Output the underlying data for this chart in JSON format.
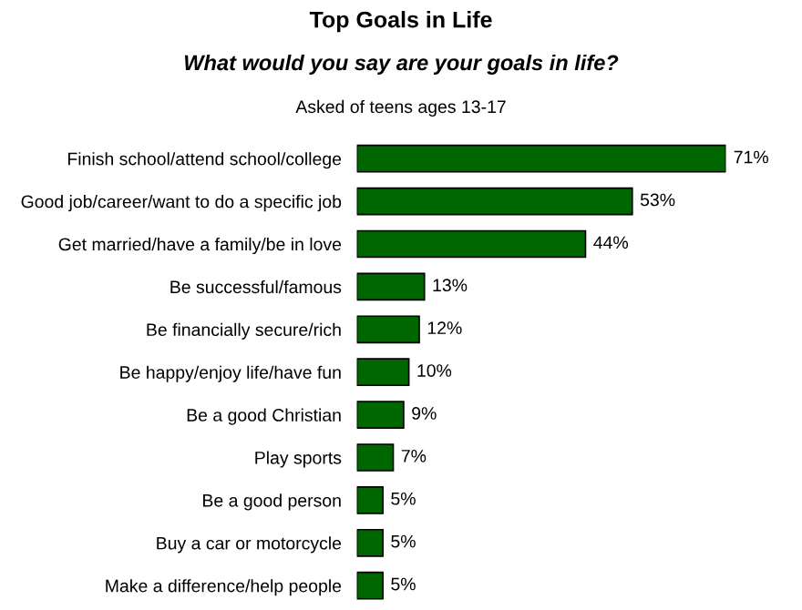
{
  "chart_data": {
    "type": "bar",
    "orientation": "horizontal",
    "title": "Top Goals in Life",
    "subtitle": "What would you say are your goals in life?",
    "annotations": [
      "Asked of teens ages 13-17"
    ],
    "categories": [
      "Finish school/attend school/college",
      "Good job/career/want to do a specific job",
      "Get married/have a family/be in love",
      "Be successful/famous",
      "Be financially secure/rich",
      "Be happy/enjoy life/have fun",
      "Be a good Christian",
      "Play sports",
      "Be a good person",
      "Buy a car or motorcycle",
      "Make a difference/help people"
    ],
    "values": [
      71,
      53,
      44,
      13,
      12,
      10,
      9,
      7,
      5,
      5,
      5
    ],
    "value_labels": [
      "71%",
      "53%",
      "44%",
      "13%",
      "12%",
      "10%",
      "9%",
      "7%",
      "5%",
      "5%",
      "5%"
    ],
    "color": "#006600"
  }
}
